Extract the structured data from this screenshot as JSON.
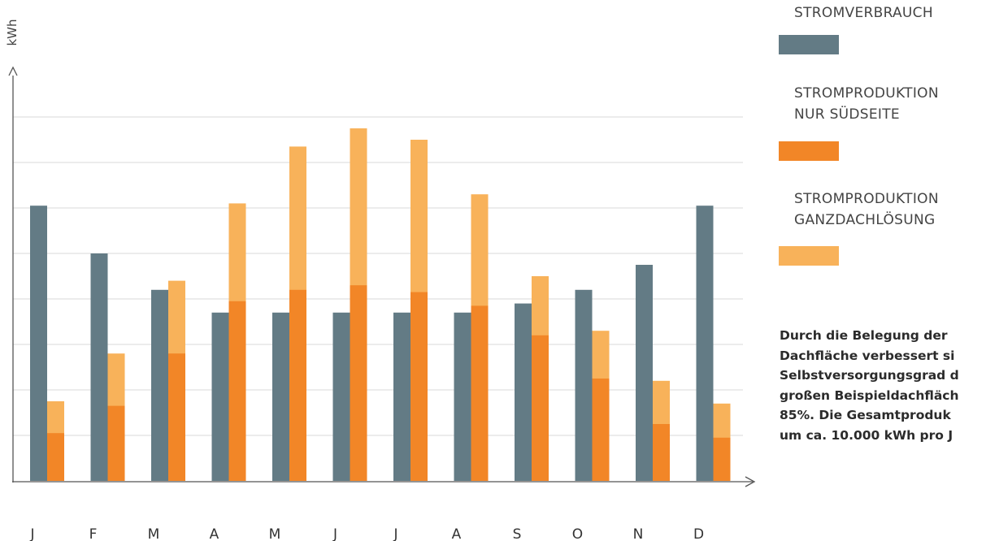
{
  "chart_data": {
    "type": "bar",
    "ylabel": "kWh",
    "xlabel": "",
    "categories": [
      "J",
      "F",
      "M",
      "A",
      "M",
      "J",
      "J",
      "A",
      "S",
      "O",
      "N",
      "D"
    ],
    "ylim": [
      0,
      8
    ],
    "grid": true,
    "legend_position": "right",
    "series": [
      {
        "name": "STROMVERBRAUCH",
        "color": "#637b85",
        "stacked": false,
        "values": [
          6.05,
          5.0,
          4.2,
          3.7,
          3.7,
          3.7,
          3.7,
          3.7,
          3.9,
          4.2,
          4.75,
          6.05
        ]
      },
      {
        "name": "STROMPRODUKTION NUR SÜDSEITE",
        "color": "#f28627",
        "stacked": true,
        "values": [
          1.05,
          1.65,
          2.8,
          3.95,
          4.2,
          4.3,
          4.15,
          3.85,
          3.2,
          2.25,
          1.25,
          0.95
        ]
      },
      {
        "name": "STROMPRODUKTION GANZDACHLÖSUNG",
        "color": "#f8b25a",
        "stacked": true,
        "values": [
          1.75,
          2.8,
          4.4,
          6.1,
          7.35,
          7.75,
          7.5,
          6.3,
          4.5,
          3.3,
          2.2,
          1.7
        ]
      }
    ]
  },
  "legend": [
    {
      "lines": [
        "STROMVERBRAUCH"
      ],
      "color": "#637b85"
    },
    {
      "lines": [
        "STROMPRODUKTION",
        "NUR SÜDSEITE"
      ],
      "color": "#f28627"
    },
    {
      "lines": [
        "STROMPRODUKTION",
        "GANZDACHLÖSUNG"
      ],
      "color": "#f8b25a"
    }
  ],
  "note": {
    "lines": [
      "Durch die Belegung der",
      "Dachfläche verbessert si",
      "Selbstversorgungsgrad d",
      "großen Beispieldachfläch",
      "85%. Die Gesamtproduk",
      "um ca. 10.000 kWh pro J"
    ]
  },
  "colors": {
    "axis": "#555555",
    "grid": "#d9d9d9"
  }
}
